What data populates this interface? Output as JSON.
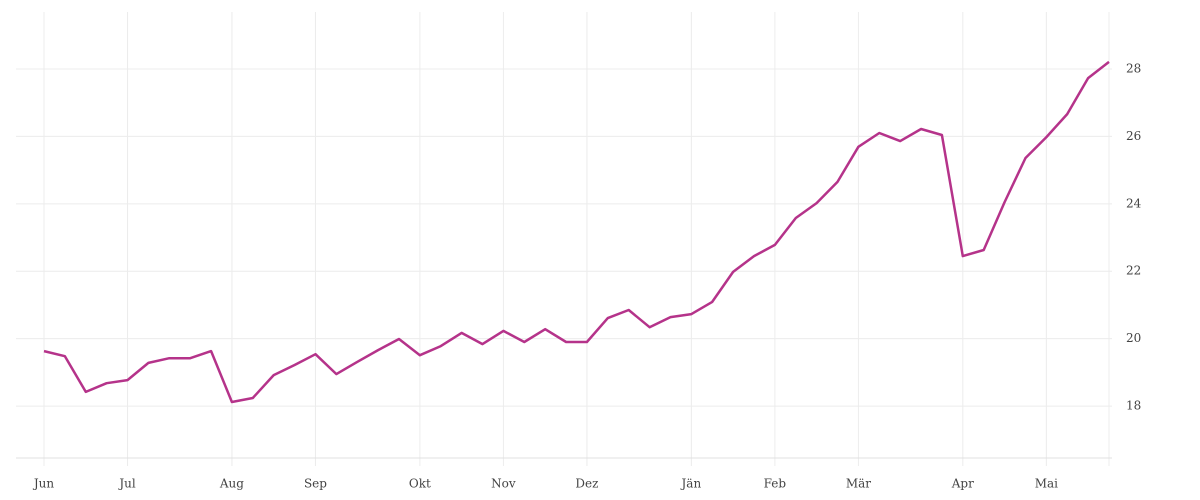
{
  "chart_data": {
    "type": "line",
    "categories": [
      "Jun",
      null,
      null,
      null,
      "Jul",
      null,
      null,
      null,
      null,
      "Aug",
      null,
      null,
      null,
      "Sep",
      null,
      null,
      null,
      null,
      "Okt",
      null,
      null,
      null,
      "Nov",
      null,
      null,
      null,
      "Dez",
      null,
      null,
      null,
      null,
      "Jän",
      null,
      null,
      null,
      "Feb",
      null,
      null,
      null,
      "Mär",
      null,
      null,
      null,
      null,
      "Apr",
      null,
      null,
      null,
      "Mai",
      null,
      null,
      null
    ],
    "values": [
      19.63,
      19.48,
      18.42,
      18.68,
      18.77,
      19.28,
      19.42,
      19.42,
      19.63,
      18.12,
      18.24,
      18.92,
      19.22,
      19.54,
      18.95,
      19.31,
      19.66,
      19.99,
      19.51,
      19.78,
      20.17,
      19.84,
      20.23,
      19.9,
      20.28,
      19.9,
      19.9,
      20.61,
      20.85,
      20.34,
      20.64,
      20.73,
      21.09,
      21.98,
      22.45,
      22.78,
      23.58,
      24.02,
      24.65,
      25.69,
      26.1,
      25.86,
      26.22,
      26.04,
      22.45,
      22.63,
      24.05,
      25.36,
      25.98,
      26.66,
      27.73,
      28.21
    ],
    "color": "#b5338a",
    "ylim": [
      16.46,
      29.69
    ],
    "yticks": [
      18,
      20,
      22,
      24,
      26,
      28
    ],
    "grid": true,
    "y_axis_side": "right"
  }
}
